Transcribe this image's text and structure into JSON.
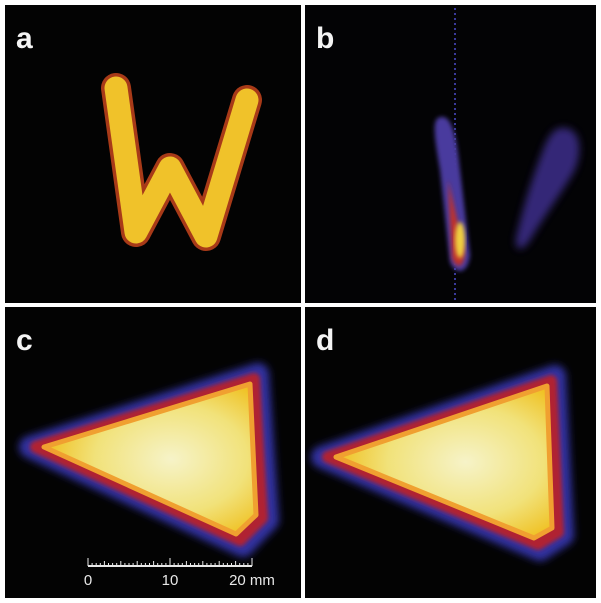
{
  "panels": [
    {
      "label": "a"
    },
    {
      "label": "b"
    },
    {
      "label": "c"
    },
    {
      "label": "d"
    }
  ],
  "scale_bar": {
    "labels": [
      "0",
      "10",
      "20 mm"
    ]
  }
}
